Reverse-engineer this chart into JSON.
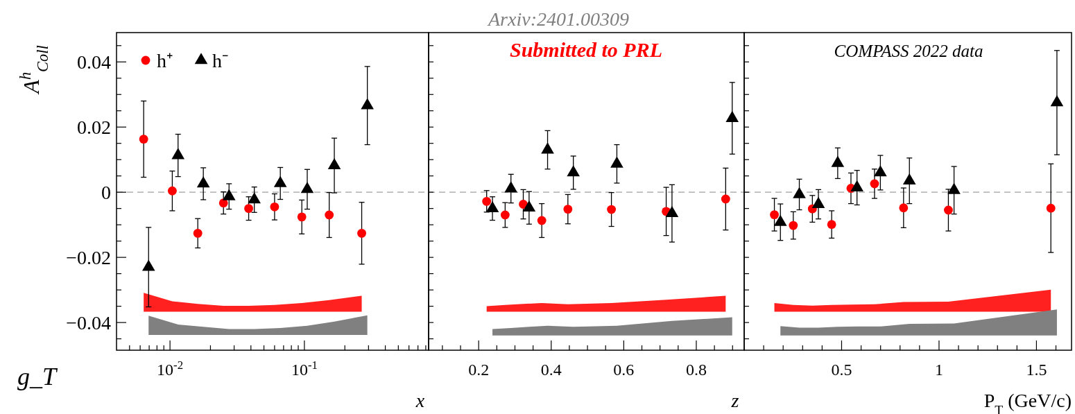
{
  "chart_data": [
    {
      "type": "scatter",
      "ylabel": "A$^{h}$$_{Coll}$",
      "xlabel": "x",
      "log": "x",
      "legend": "top left",
      "annotations": [
        "g_T"
      ],
      "xlim": [
        0.004,
        0.84
      ],
      "xticks": [
        {
          "value": 0.005,
          "label": null
        },
        {
          "value": 0.006,
          "label": null
        },
        {
          "value": 0.007,
          "label": null
        },
        {
          "value": 0.008,
          "label": null
        },
        {
          "value": 0.009,
          "label": null
        },
        {
          "value": 0.01,
          "label": "10$^{-2}$"
        },
        {
          "value": 0.02,
          "label": null
        },
        {
          "value": 0.03,
          "label": null
        },
        {
          "value": 0.04,
          "label": null
        },
        {
          "value": 0.05,
          "label": null
        },
        {
          "value": 0.06,
          "label": null
        },
        {
          "value": 0.07,
          "label": null
        },
        {
          "value": 0.08,
          "label": null
        },
        {
          "value": 0.09,
          "label": null
        },
        {
          "value": 0.1,
          "label": "10$^{-1}$"
        },
        {
          "value": 0.2,
          "label": null
        },
        {
          "value": 0.3,
          "label": null
        },
        {
          "value": 0.4,
          "label": null
        },
        {
          "value": 0.5,
          "label": null
        },
        {
          "value": 0.6,
          "label": null
        },
        {
          "value": 0.7,
          "label": null
        },
        {
          "value": 0.8,
          "label": null
        }
      ],
      "ylim": [
        -0.0485,
        0.049
      ],
      "yticks": [
        {
          "value": -0.045,
          "label": null
        },
        {
          "value": -0.04,
          "label": "−0.04"
        },
        {
          "value": -0.035,
          "label": null
        },
        {
          "value": -0.03,
          "label": null
        },
        {
          "value": -0.025,
          "label": null
        },
        {
          "value": -0.02,
          "label": "−0.02"
        },
        {
          "value": -0.015,
          "label": null
        },
        {
          "value": -0.01,
          "label": null
        },
        {
          "value": -0.005,
          "label": null
        },
        {
          "value": 0,
          "label": "0"
        },
        {
          "value": 0.005,
          "label": null
        },
        {
          "value": 0.01,
          "label": null
        },
        {
          "value": 0.015,
          "label": null
        },
        {
          "value": 0.02,
          "label": "0.02"
        },
        {
          "value": 0.025,
          "label": null
        },
        {
          "value": 0.03,
          "label": null
        },
        {
          "value": 0.035,
          "label": null
        },
        {
          "value": 0.04,
          "label": "0.04"
        },
        {
          "value": 0.045,
          "label": null
        }
      ],
      "ref_lines": [
        {
          "axis": "y",
          "value": 0,
          "color": "#a0a0a0",
          "line_style": "dashed"
        }
      ],
      "series": [
        {
          "name": "h⁺",
          "color": "#ff0000",
          "marker": "circle",
          "x": [
            0.00637,
            0.0104,
            0.0161,
            0.025,
            0.0385,
            0.06,
            0.0957,
            0.153,
            0.267
          ],
          "values": [
            0.0163,
            0.0004,
            -0.0126,
            -0.0033,
            -0.005,
            -0.0045,
            -0.0076,
            -0.007,
            -0.0126
          ],
          "errors": [
            0.0117,
            0.0061,
            0.0045,
            0.0034,
            0.0036,
            0.004,
            0.0052,
            0.0069,
            0.0095
          ]
        },
        {
          "name": "h⁻",
          "color": "#000000",
          "marker": "triangle",
          "x": [
            0.00693,
            0.01148,
            0.0177,
            0.0275,
            0.0424,
            0.0662,
            0.105,
            0.167,
            0.294
          ],
          "values": [
            -0.023,
            0.0113,
            0.0026,
            -0.0013,
            -0.0023,
            0.0027,
            0.0009,
            0.0082,
            0.0266
          ],
          "errors": [
            0.0122,
            0.0065,
            0.0049,
            0.0039,
            0.0039,
            0.0049,
            0.0061,
            0.0084,
            0.012
          ]
        },
        {
          "type": "area",
          "color": "#ff2020",
          "x": [
            0.00637,
            0.0104,
            0.0161,
            0.025,
            0.0385,
            0.06,
            0.0957,
            0.153,
            0.267
          ],
          "values": [
            null,
            null,
            null,
            null,
            null,
            null,
            null,
            null,
            null
          ],
          "upper": [
            -0.0309,
            -0.0335,
            -0.0343,
            -0.0349,
            -0.0349,
            -0.0346,
            -0.034,
            -0.0331,
            -0.0318
          ],
          "lower": [
            -0.0367,
            -0.0367,
            -0.0367,
            -0.0367,
            -0.0367,
            -0.0367,
            -0.0367,
            -0.0367,
            -0.0367
          ]
        },
        {
          "type": "area",
          "color": "#808080",
          "x": [
            0.00693,
            0.01148,
            0.0177,
            0.0275,
            0.0424,
            0.0662,
            0.105,
            0.167,
            0.294
          ],
          "values": [
            null,
            null,
            null,
            null,
            null,
            null,
            null,
            null,
            null
          ],
          "upper": [
            -0.0379,
            -0.0406,
            -0.0413,
            -0.042,
            -0.042,
            -0.0417,
            -0.041,
            -0.0397,
            -0.0378
          ],
          "lower": [
            -0.0438,
            -0.0438,
            -0.0438,
            -0.0438,
            -0.0438,
            -0.0438,
            -0.0438,
            -0.0438,
            -0.0438
          ]
        }
      ]
    },
    {
      "type": "scatter",
      "title": "Arxiv:2401.00309",
      "xlabel": "z",
      "tick_labels": "x",
      "annotations": [
        "Submitted to PRL"
      ],
      "xlim": [
        0.062,
        0.932
      ],
      "xticks": [
        {
          "value": 0.1,
          "label": null
        },
        {
          "value": 0.15,
          "label": null
        },
        {
          "value": 0.2,
          "label": "0.2"
        },
        {
          "value": 0.25,
          "label": null
        },
        {
          "value": 0.3,
          "label": null
        },
        {
          "value": 0.35,
          "label": null
        },
        {
          "value": 0.4,
          "label": "0.4"
        },
        {
          "value": 0.45,
          "label": null
        },
        {
          "value": 0.5,
          "label": null
        },
        {
          "value": 0.55,
          "label": null
        },
        {
          "value": 0.6,
          "label": "0.6"
        },
        {
          "value": 0.65,
          "label": null
        },
        {
          "value": 0.7,
          "label": null
        },
        {
          "value": 0.75,
          "label": null
        },
        {
          "value": 0.8,
          "label": "0.8"
        },
        {
          "value": 0.85,
          "label": null
        },
        {
          "value": 0.9,
          "label": null
        }
      ],
      "ylim": [
        -0.0485,
        0.049
      ],
      "yticks": [
        {
          "value": -0.045,
          "label": null
        },
        {
          "value": -0.04,
          "label": null
        },
        {
          "value": -0.035,
          "label": null
        },
        {
          "value": -0.03,
          "label": null
        },
        {
          "value": -0.025,
          "label": null
        },
        {
          "value": -0.02,
          "label": null
        },
        {
          "value": -0.015,
          "label": null
        },
        {
          "value": -0.01,
          "label": null
        },
        {
          "value": -0.005,
          "label": null
        },
        {
          "value": 0,
          "label": null
        },
        {
          "value": 0.005,
          "label": null
        },
        {
          "value": 0.01,
          "label": null
        },
        {
          "value": 0.015,
          "label": null
        },
        {
          "value": 0.02,
          "label": null
        },
        {
          "value": 0.025,
          "label": null
        },
        {
          "value": 0.03,
          "label": null
        },
        {
          "value": 0.035,
          "label": null
        },
        {
          "value": 0.04,
          "label": null
        },
        {
          "value": 0.045,
          "label": null
        }
      ],
      "ref_lines": [
        {
          "axis": "y",
          "value": 0,
          "color": "#a0a0a0",
          "line_style": "dashed"
        }
      ],
      "series": [
        {
          "color": "#ff0000",
          "marker": "circle",
          "x": [
            0.222,
            0.273,
            0.323,
            0.374,
            0.446,
            0.566,
            0.717,
            0.881
          ],
          "values": [
            -0.0028,
            -0.007,
            -0.0037,
            -0.0087,
            -0.0052,
            -0.0053,
            -0.0059,
            -0.0021
          ],
          "errors": [
            0.0033,
            0.0038,
            0.0045,
            0.0052,
            0.0045,
            0.0052,
            0.0074,
            0.0095
          ]
        },
        {
          "color": "#000000",
          "marker": "triangle",
          "x": [
            0.238,
            0.289,
            0.339,
            0.39,
            0.461,
            0.581,
            0.733,
            0.899
          ],
          "values": [
            -0.005,
            0.0011,
            -0.0048,
            0.013,
            0.006,
            0.0087,
            -0.0065,
            0.0227
          ],
          "errors": [
            0.0036,
            0.0044,
            0.005,
            0.0059,
            0.0051,
            0.0059,
            0.0088,
            0.011
          ]
        },
        {
          "type": "area",
          "color": "#ff2020",
          "x": [
            0.222,
            0.273,
            0.323,
            0.374,
            0.446,
            0.566,
            0.717,
            0.881
          ],
          "values": [
            null,
            null,
            null,
            null,
            null,
            null,
            null,
            null
          ],
          "upper": [
            -0.035,
            -0.0346,
            -0.0343,
            -0.034,
            -0.0344,
            -0.034,
            -0.033,
            -0.0318
          ],
          "lower": [
            -0.0367,
            -0.0367,
            -0.0367,
            -0.0367,
            -0.0367,
            -0.0367,
            -0.0367,
            -0.0367
          ]
        },
        {
          "type": "area",
          "color": "#808080",
          "x": [
            0.238,
            0.289,
            0.339,
            0.39,
            0.461,
            0.581,
            0.733,
            0.899
          ],
          "values": [
            null,
            null,
            null,
            null,
            null,
            null,
            null,
            null
          ],
          "upper": [
            -0.042,
            -0.0417,
            -0.0413,
            -0.041,
            -0.0413,
            -0.041,
            -0.0395,
            -0.0384
          ],
          "lower": [
            -0.044,
            -0.044,
            -0.044,
            -0.044,
            -0.044,
            -0.044,
            -0.044,
            -0.044
          ]
        }
      ]
    },
    {
      "type": "scatter",
      "xlabel": "P$_{T}$ (GeV/c)",
      "tick_labels": "x",
      "annotations": [
        "COMPASS 2022 data"
      ],
      "xlim": [
        0,
        1.68
      ],
      "xticks": [
        {
          "value": 0.1,
          "label": null
        },
        {
          "value": 0.2,
          "label": null
        },
        {
          "value": 0.3,
          "label": null
        },
        {
          "value": 0.4,
          "label": null
        },
        {
          "value": 0.5,
          "label": "0.5"
        },
        {
          "value": 0.6,
          "label": null
        },
        {
          "value": 0.7,
          "label": null
        },
        {
          "value": 0.8,
          "label": null
        },
        {
          "value": 0.9,
          "label": null
        },
        {
          "value": 1,
          "label": "1"
        },
        {
          "value": 1.1,
          "label": null
        },
        {
          "value": 1.2,
          "label": null
        },
        {
          "value": 1.3,
          "label": null
        },
        {
          "value": 1.4,
          "label": null
        },
        {
          "value": 1.5,
          "label": "1.5"
        },
        {
          "value": 1.6,
          "label": null
        }
      ],
      "ylim": [
        -0.0485,
        0.049
      ],
      "yticks": [
        {
          "value": -0.045,
          "label": null
        },
        {
          "value": -0.04,
          "label": null
        },
        {
          "value": -0.035,
          "label": null
        },
        {
          "value": -0.03,
          "label": null
        },
        {
          "value": -0.025,
          "label": null
        },
        {
          "value": -0.02,
          "label": null
        },
        {
          "value": -0.015,
          "label": null
        },
        {
          "value": -0.01,
          "label": null
        },
        {
          "value": -0.005,
          "label": null
        },
        {
          "value": 0,
          "label": null
        },
        {
          "value": 0.005,
          "label": null
        },
        {
          "value": 0.01,
          "label": null
        },
        {
          "value": 0.015,
          "label": null
        },
        {
          "value": 0.02,
          "label": null
        },
        {
          "value": 0.025,
          "label": null
        },
        {
          "value": 0.03,
          "label": null
        },
        {
          "value": 0.035,
          "label": null
        },
        {
          "value": 0.04,
          "label": null
        },
        {
          "value": 0.045,
          "label": null
        }
      ],
      "ref_lines": [
        {
          "axis": "y",
          "value": 0,
          "color": "#a0a0a0",
          "line_style": "dashed"
        }
      ],
      "series": [
        {
          "color": "#ff0000",
          "marker": "circle",
          "x": [
            0.155,
            0.252,
            0.35,
            0.449,
            0.548,
            0.669,
            0.818,
            1.048,
            1.574
          ],
          "values": [
            -0.0069,
            -0.0102,
            -0.0051,
            -0.0099,
            0.0012,
            0.0026,
            -0.0048,
            -0.0055,
            -0.0049
          ],
          "errors": [
            0.005,
            0.0042,
            0.0041,
            0.0042,
            0.0047,
            0.0045,
            0.0061,
            0.0064,
            0.0136
          ]
        },
        {
          "color": "#000000",
          "marker": "triangle",
          "x": [
            0.186,
            0.283,
            0.381,
            0.48,
            0.579,
            0.699,
            0.848,
            1.077,
            1.605
          ],
          "values": [
            -0.0092,
            -0.0007,
            -0.0037,
            0.0089,
            0.0014,
            0.006,
            0.0035,
            0.0006,
            0.0275
          ],
          "errors": [
            0.0056,
            0.0047,
            0.0045,
            0.0047,
            0.0053,
            0.0053,
            0.007,
            0.0073,
            0.016
          ]
        },
        {
          "type": "area",
          "color": "#ff2020",
          "x": [
            0.155,
            0.252,
            0.35,
            0.449,
            0.548,
            0.669,
            0.818,
            1.048,
            1.574
          ],
          "values": [
            null,
            null,
            null,
            null,
            null,
            null,
            null,
            null,
            null
          ],
          "upper": [
            -0.034,
            -0.0346,
            -0.0348,
            -0.0346,
            -0.0345,
            -0.0344,
            -0.0337,
            -0.0336,
            -0.0299
          ],
          "lower": [
            -0.0367,
            -0.0367,
            -0.0367,
            -0.0367,
            -0.0367,
            -0.0367,
            -0.0367,
            -0.0367,
            -0.0367
          ]
        },
        {
          "type": "area",
          "color": "#808080",
          "x": [
            0.186,
            0.283,
            0.381,
            0.48,
            0.579,
            0.699,
            0.848,
            1.077,
            1.605
          ],
          "values": [
            null,
            null,
            null,
            null,
            null,
            null,
            null,
            null,
            null
          ],
          "upper": [
            -0.0411,
            -0.0416,
            -0.0416,
            -0.0413,
            -0.0412,
            -0.0412,
            -0.0404,
            -0.0403,
            -0.036
          ],
          "lower": [
            -0.044,
            -0.044,
            -0.044,
            -0.044,
            -0.044,
            -0.044,
            -0.044,
            -0.044,
            -0.044
          ]
        }
      ]
    }
  ]
}
